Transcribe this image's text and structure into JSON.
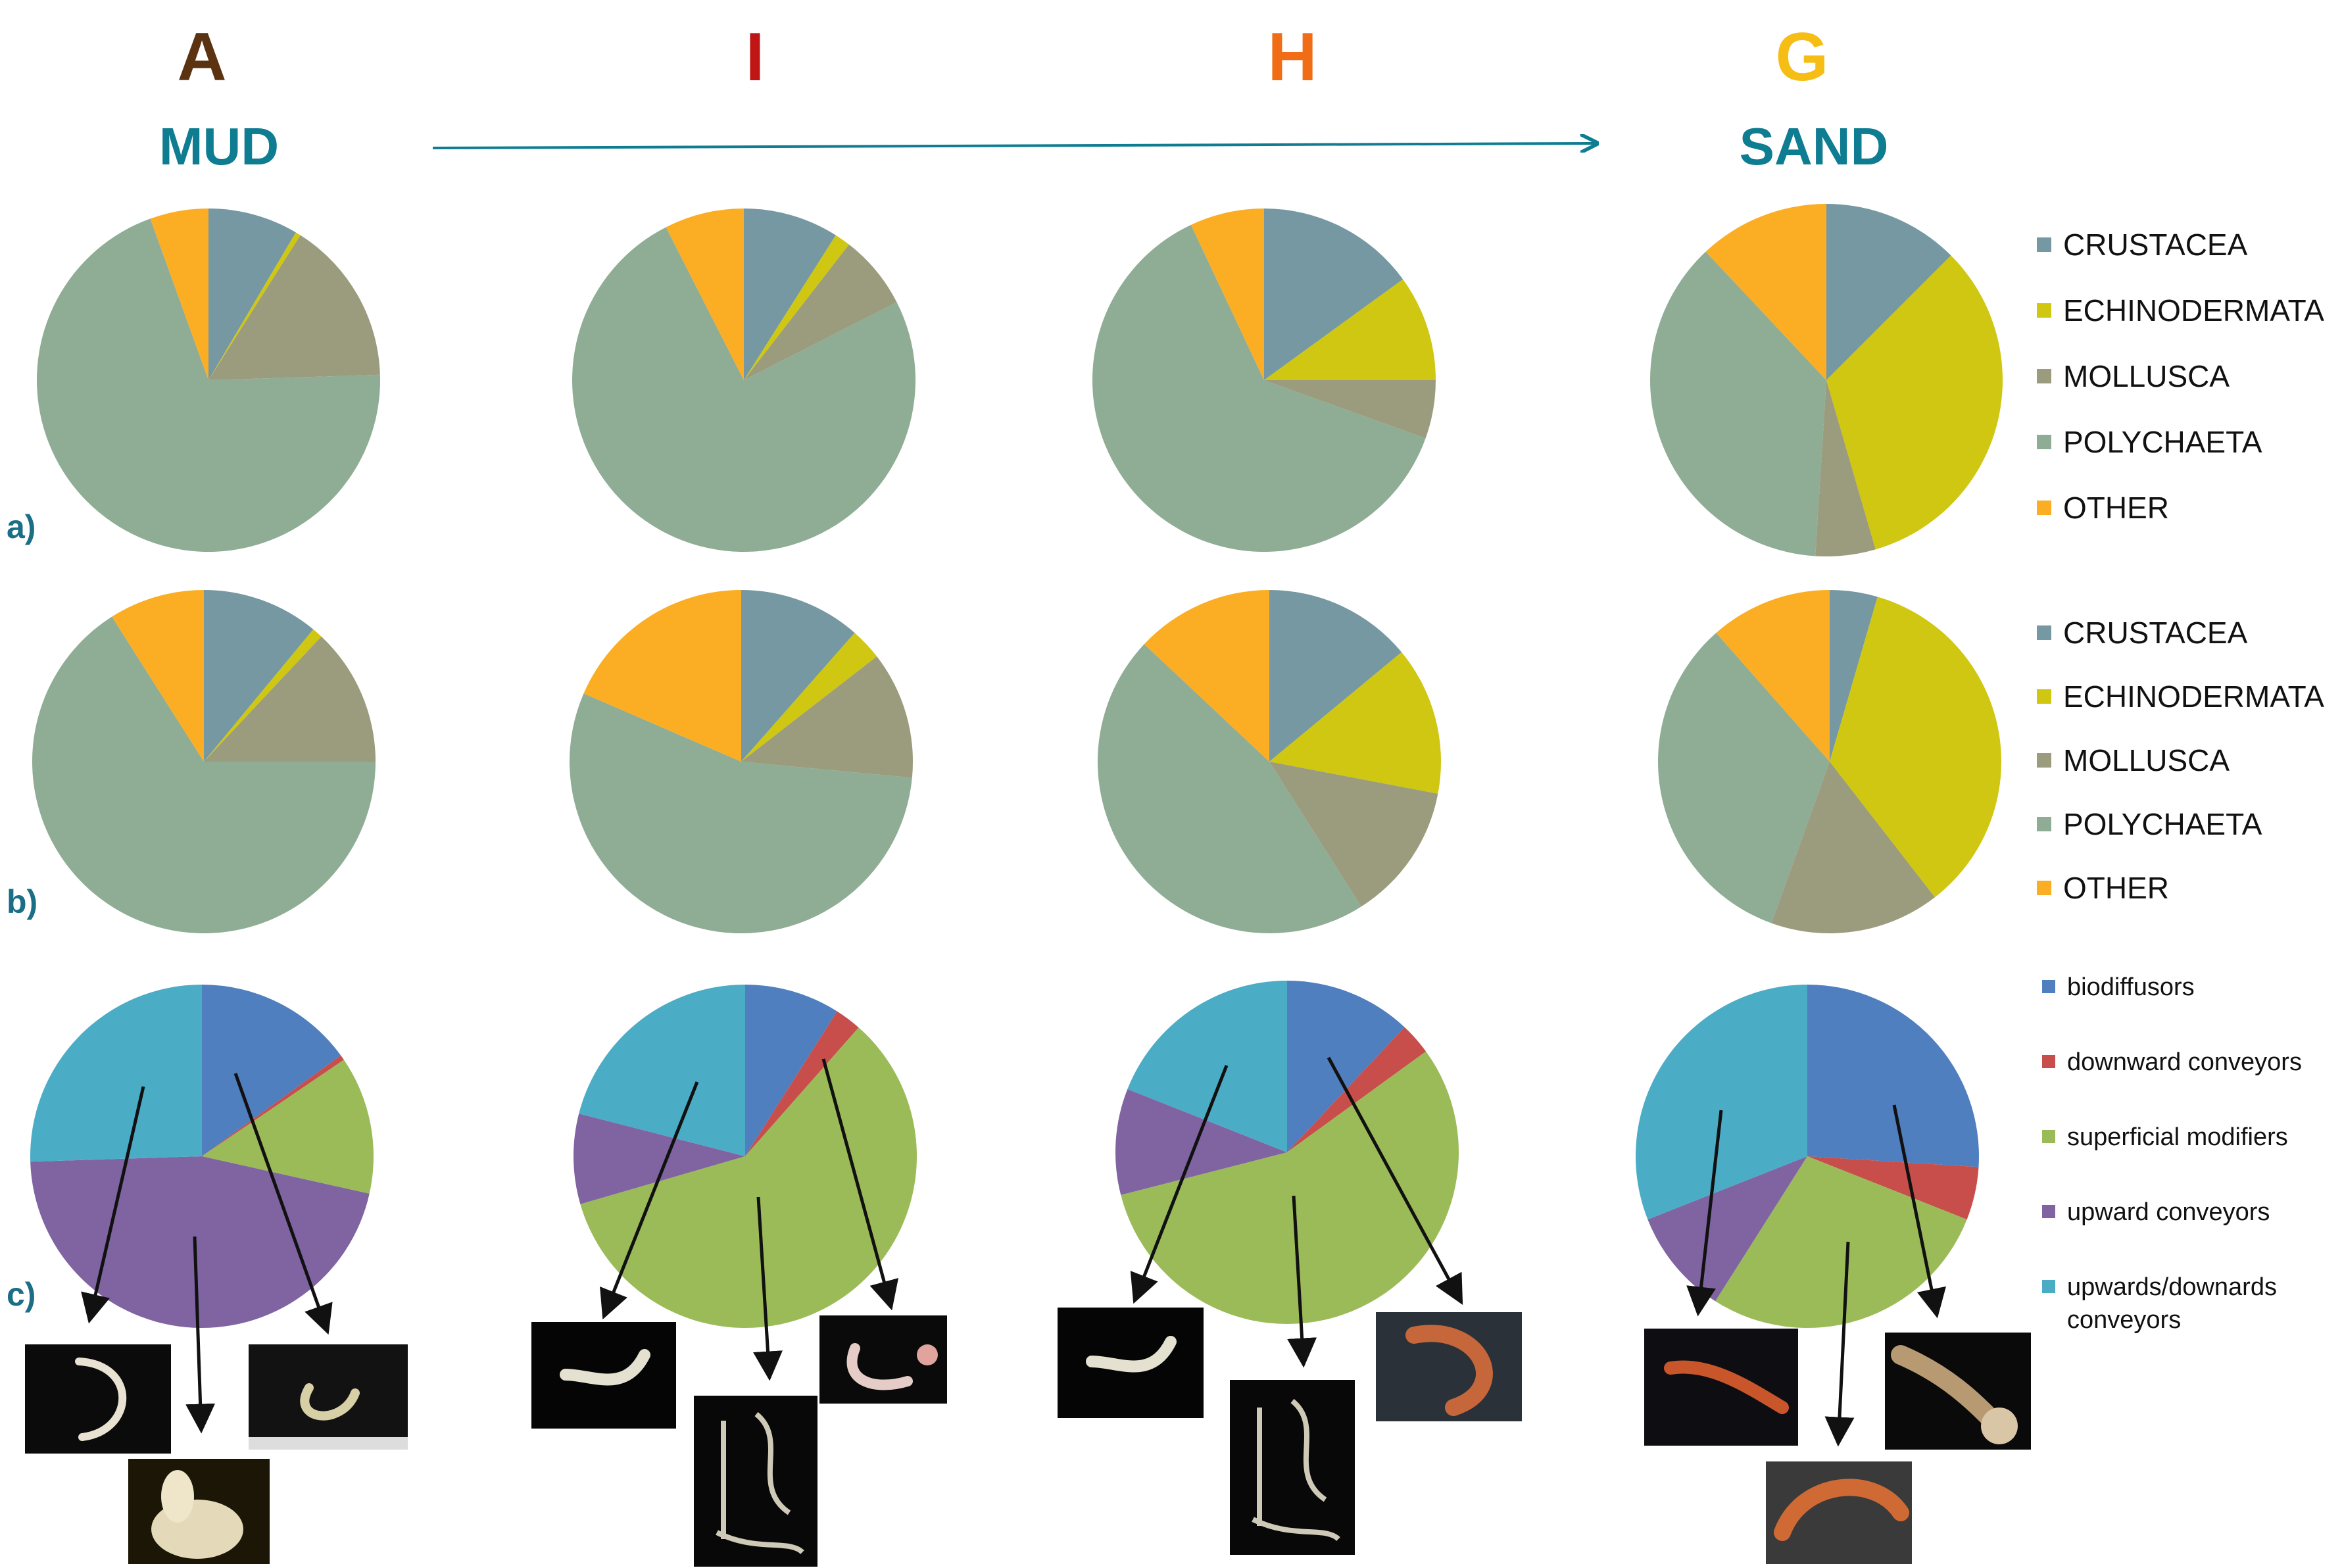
{
  "stations": [
    {
      "label": "A",
      "color": "#5c3311"
    },
    {
      "label": "I",
      "color": "#c01515"
    },
    {
      "label": "H",
      "color": "#f06d16"
    },
    {
      "label": "G",
      "color": "#f6be14"
    }
  ],
  "gradient": {
    "start_label": "MUD",
    "end_label": "SAND"
  },
  "row_labels": [
    "a)",
    "b)",
    "c)"
  ],
  "chart_data": [
    {
      "type": "pie",
      "row": "a)",
      "categories": [
        "CRUSTACEA",
        "ECHINODERMATA",
        "MOLLUSCA",
        "POLYCHAETA",
        "OTHER"
      ],
      "colors": [
        "#7598a2",
        "#cfc712",
        "#9b9b7d",
        "#8fac94",
        "#fbae24"
      ],
      "legend": "right",
      "pies": [
        {
          "station": "A",
          "values": [
            8.5,
            0.5,
            15.5,
            70,
            5.5
          ]
        },
        {
          "station": "I",
          "values": [
            9,
            1.5,
            7,
            75,
            7.5
          ]
        },
        {
          "station": "H",
          "values": [
            15,
            10,
            5.5,
            62.5,
            7
          ]
        },
        {
          "station": "G",
          "values": [
            12.5,
            33,
            5.5,
            37,
            12
          ]
        }
      ]
    },
    {
      "type": "pie",
      "row": "b)",
      "categories": [
        "CRUSTACEA",
        "ECHINODERMATA",
        "MOLLUSCA",
        "POLYCHAETA",
        "OTHER"
      ],
      "colors": [
        "#7598a2",
        "#cfc712",
        "#9b9b7d",
        "#8fac94",
        "#fbae24"
      ],
      "legend": "right",
      "pies": [
        {
          "station": "A",
          "values": [
            11,
            1,
            13,
            66,
            9
          ]
        },
        {
          "station": "I",
          "values": [
            11.5,
            3,
            12,
            55,
            18.5
          ]
        },
        {
          "station": "H",
          "values": [
            14,
            14,
            13,
            46,
            13
          ]
        },
        {
          "station": "G",
          "values": [
            4.5,
            35,
            16,
            33,
            11.5
          ]
        }
      ]
    },
    {
      "type": "pie",
      "row": "c)",
      "categories": [
        "biodiffusors",
        "downward conveyors",
        "superficial modifiers",
        "upward conveyors",
        "upwards/downards conveyors"
      ],
      "colors": [
        "#4f7fbf",
        "#c84e4c",
        "#9bbb59",
        "#8064a2",
        "#4bacc6"
      ],
      "legend": "right",
      "pies": [
        {
          "station": "A",
          "values": [
            15,
            0.5,
            13,
            46,
            25.5
          ]
        },
        {
          "station": "I",
          "values": [
            9,
            2.5,
            59,
            8.5,
            21
          ]
        },
        {
          "station": "H",
          "values": [
            12,
            3,
            56,
            10,
            19
          ]
        },
        {
          "station": "G",
          "values": [
            26,
            5,
            28,
            10,
            31
          ]
        }
      ]
    }
  ]
}
